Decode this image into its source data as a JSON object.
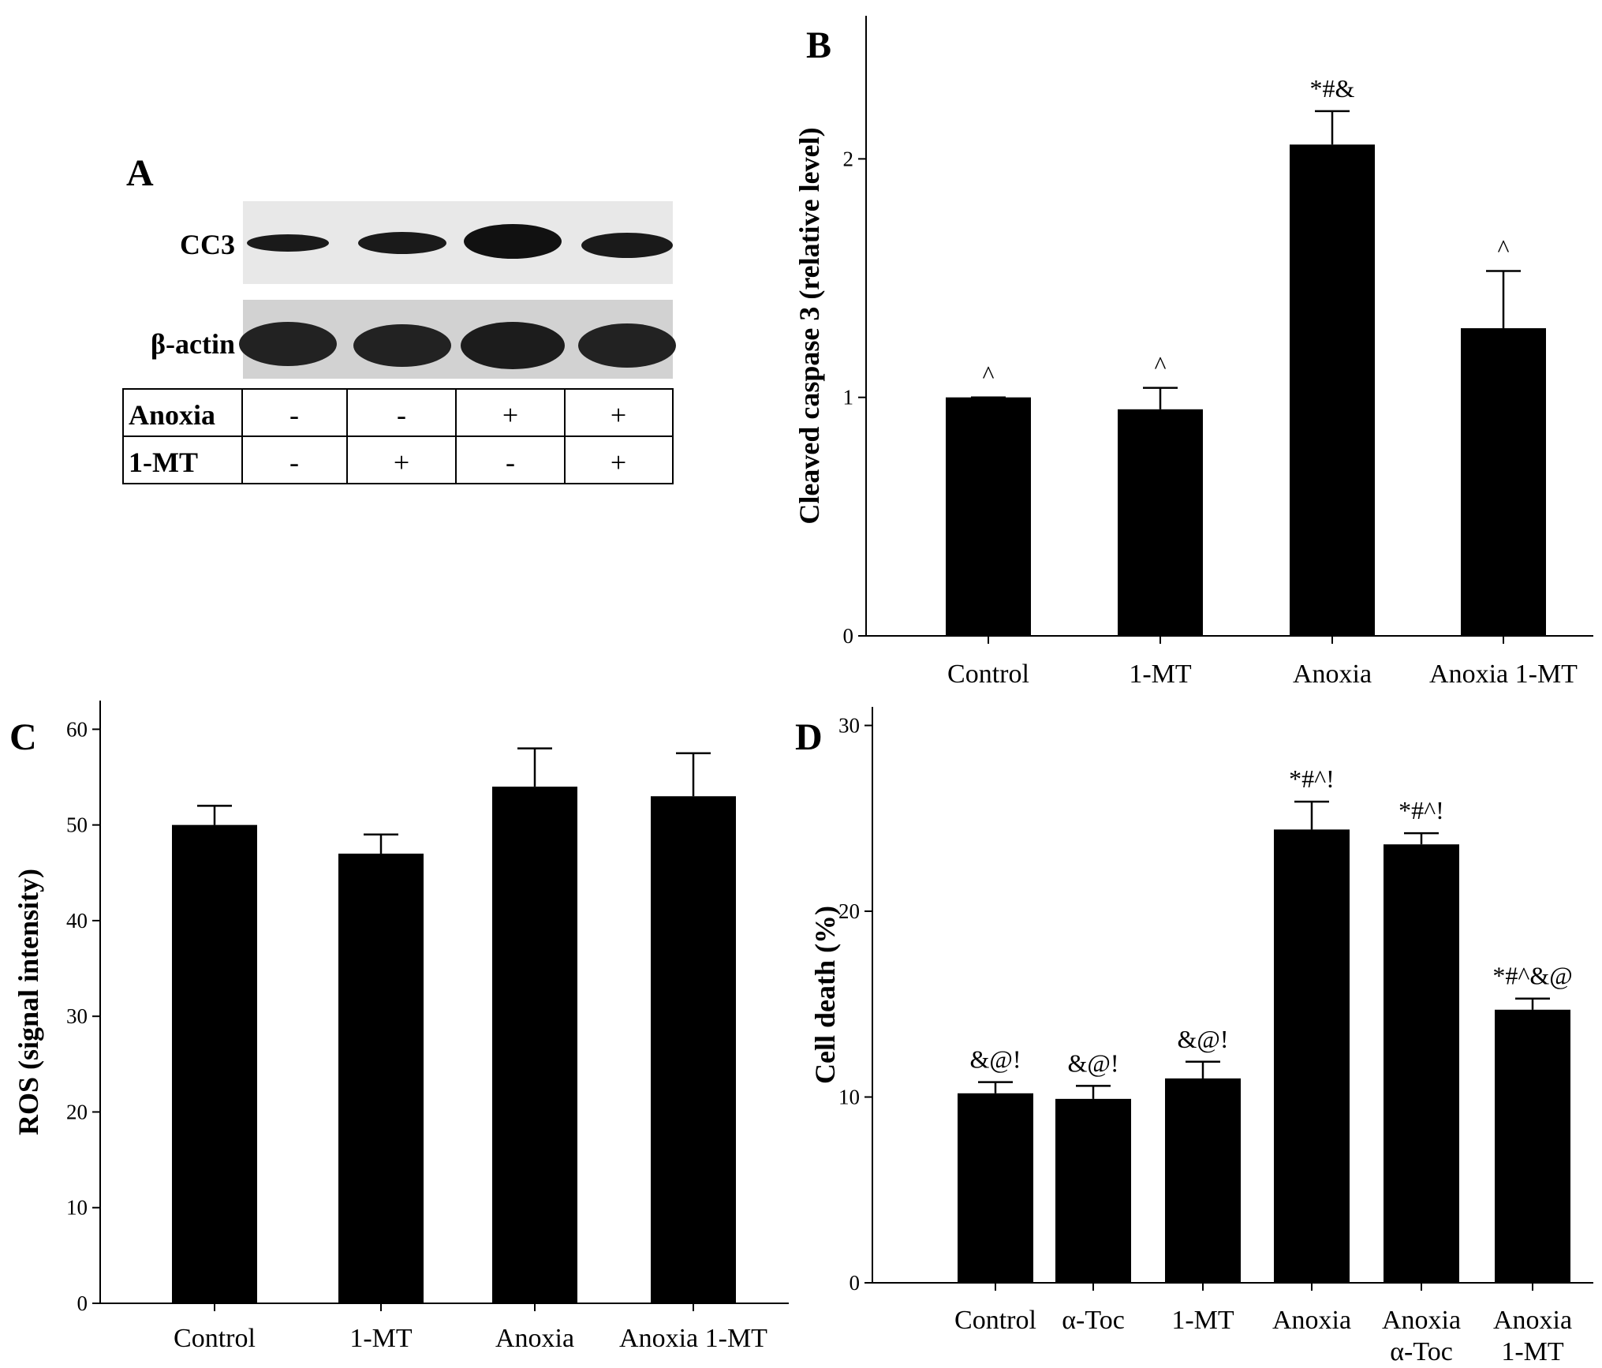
{
  "panels": {
    "A": {
      "letter": "A",
      "blot_rows": [
        "CC3",
        "β-actin"
      ],
      "conditions": [
        {
          "label": "Anoxia",
          "values": [
            "-",
            "-",
            "+",
            "+"
          ]
        },
        {
          "label": "1-MT",
          "values": [
            "-",
            "+",
            "-",
            "+"
          ]
        }
      ]
    },
    "B": {
      "letter": "B"
    },
    "C": {
      "letter": "C"
    },
    "D": {
      "letter": "D"
    }
  },
  "chart_data": [
    {
      "panel": "B",
      "type": "bar",
      "categories": [
        [
          "Control"
        ],
        [
          "1-MT"
        ],
        [
          "Anoxia"
        ],
        [
          "Anoxia 1-MT"
        ]
      ],
      "values": [
        1.0,
        0.95,
        2.06,
        1.29
      ],
      "errors": [
        0.0,
        0.09,
        0.14,
        0.24
      ],
      "annotations": [
        "^",
        "^",
        "*#&",
        "^"
      ],
      "ylabel": "Cleaved caspase 3 (relative level)",
      "ylim": [
        0,
        2.6
      ],
      "yticks": [
        0,
        1,
        2
      ],
      "grid": false
    },
    {
      "panel": "C",
      "type": "bar",
      "categories": [
        [
          "Control"
        ],
        [
          "1-MT"
        ],
        [
          "Anoxia"
        ],
        [
          "Anoxia 1-MT"
        ]
      ],
      "values": [
        50,
        47,
        54,
        53
      ],
      "errors": [
        2,
        2,
        4,
        4.5
      ],
      "annotations": [
        "",
        "",
        "",
        ""
      ],
      "ylabel": "ROS (signal intensity)",
      "ylim": [
        0,
        63
      ],
      "yticks": [
        0,
        10,
        20,
        30,
        40,
        50,
        60
      ],
      "grid": false
    },
    {
      "panel": "D",
      "type": "bar",
      "categories": [
        [
          "Control"
        ],
        [
          "α-Toc"
        ],
        [
          "1-MT"
        ],
        [
          "Anoxia"
        ],
        [
          "Anoxia",
          "α-Toc"
        ],
        [
          "Anoxia",
          "1-MT"
        ]
      ],
      "values": [
        10.2,
        9.9,
        11.0,
        24.4,
        23.6,
        14.7
      ],
      "errors": [
        0.6,
        0.7,
        0.9,
        1.5,
        0.6,
        0.6
      ],
      "annotations": [
        "&@!",
        "&@!",
        "&@!",
        "*#^!",
        "*#^!",
        "*#^&@"
      ],
      "ylabel": "Cell death (%)",
      "ylim": [
        0,
        31
      ],
      "yticks": [
        0,
        10,
        20,
        30
      ],
      "grid": false
    }
  ]
}
